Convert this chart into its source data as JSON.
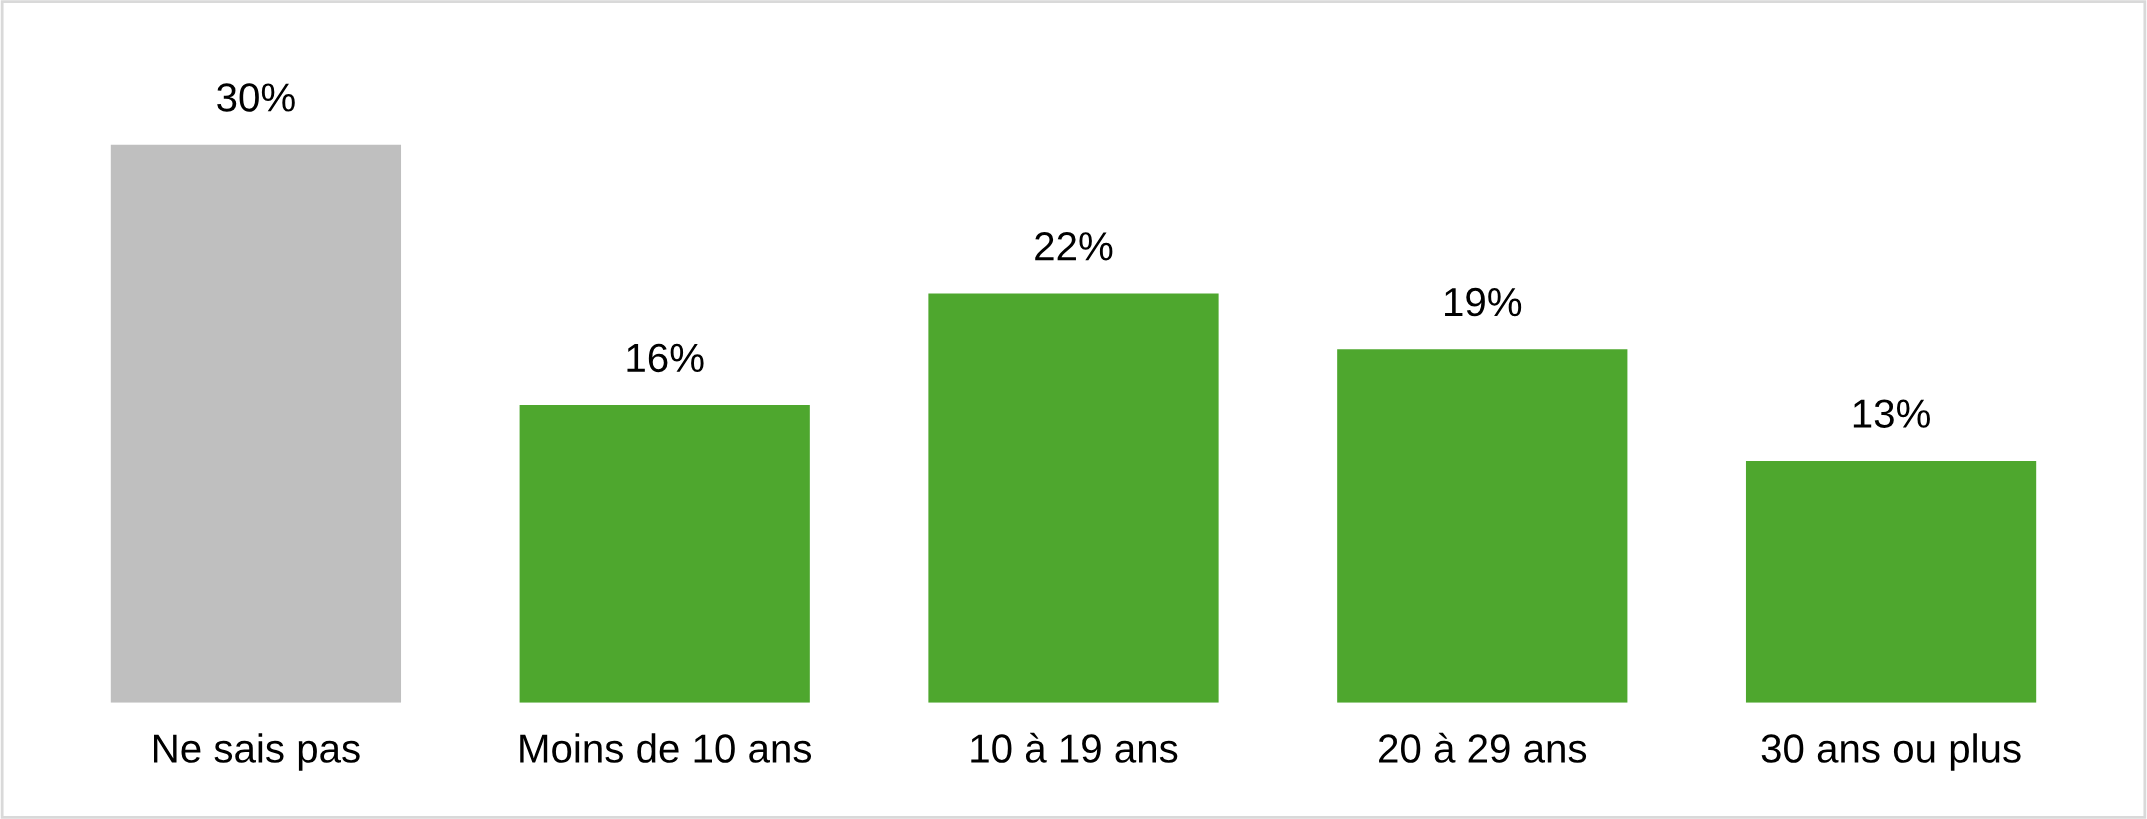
{
  "chart_data": {
    "type": "bar",
    "categories": [
      "Ne sais pas",
      "Moins de 10 ans",
      "10 à 19 ans",
      "20 à 29 ans",
      "30 ans ou plus"
    ],
    "values": [
      30,
      16,
      22,
      19,
      13
    ],
    "value_labels": [
      "30%",
      "16%",
      "22%",
      "19%",
      "13%"
    ],
    "colors": [
      "#bfbfbf",
      "#4ea72e",
      "#4ea72e",
      "#4ea72e",
      "#4ea72e"
    ],
    "grid": false,
    "legend": false
  }
}
